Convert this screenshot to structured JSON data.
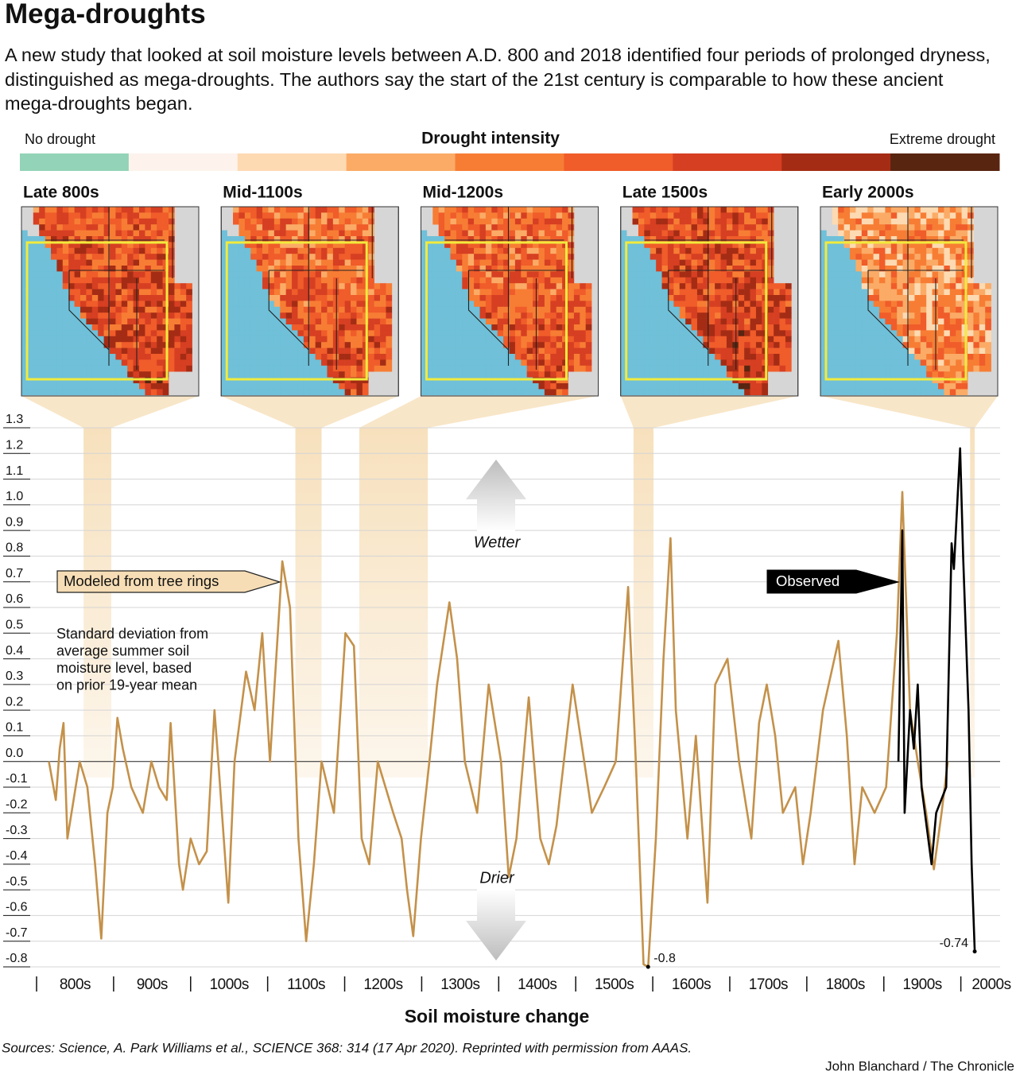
{
  "chart_data": {
    "type": "line",
    "title": "Mega-droughts",
    "subtitle": "A new study that looked at soil moisture levels between A.D. 800 and 2018 identified four periods of prolonged dryness, distinguished as mega-droughts. The authors say the start of the 21st century is comparable to how these ancient mega-droughts began.",
    "colorbar": {
      "title": "Drought intensity",
      "low_label": "No drought",
      "high_label": "Extreme drought",
      "colors": [
        "#93d3b7",
        "#fdf3ec",
        "#fddab2",
        "#fbab66",
        "#f77d34",
        "#f05c2a",
        "#d63f22",
        "#a52c14",
        "#582511"
      ]
    },
    "panels": [
      {
        "title": "Late 800s",
        "start": 861,
        "end": 897
      },
      {
        "title": "Mid-1100s",
        "start": 1136,
        "end": 1170
      },
      {
        "title": "Mid-1200s",
        "start": 1219,
        "end": 1308
      },
      {
        "title": "Late 1500s",
        "start": 1575,
        "end": 1601
      },
      {
        "title": "Early 2000s",
        "start": 2012,
        "end": 2018
      }
    ],
    "x_label": "Soil moisture change",
    "y_label": [
      "Standard deviation from",
      "average summer soil",
      "moisture level, based",
      "on prior 19-year mean"
    ],
    "wetter_label": "Wetter",
    "drier_label": "Drier",
    "xlim": [
      800,
      2020
    ],
    "xticks": [
      {
        "value": 800,
        "label": "800s"
      },
      {
        "value": 900,
        "label": "900s"
      },
      {
        "value": 1000,
        "label": "1000s"
      },
      {
        "value": 1100,
        "label": "1100s"
      },
      {
        "value": 1200,
        "label": "1200s"
      },
      {
        "value": 1300,
        "label": "1300s"
      },
      {
        "value": 1400,
        "label": "1400s"
      },
      {
        "value": 1500,
        "label": "1500s"
      },
      {
        "value": 1600,
        "label": "1600s"
      },
      {
        "value": 1700,
        "label": "1700s"
      },
      {
        "value": 1800,
        "label": "1800s"
      },
      {
        "value": 1900,
        "label": "1900s"
      },
      {
        "value": 2000,
        "label": "2000s"
      }
    ],
    "ylim": [
      -0.8,
      1.3
    ],
    "yticks": [
      1.3,
      1.2,
      1.1,
      {
        "value": 1,
        "label": "1.0"
      },
      0.9,
      0.8,
      0.7,
      0.6,
      0.5,
      0.4,
      0.3,
      0.2,
      0.1,
      {
        "value": 0,
        "label": "0.0"
      },
      -0.1,
      -0.2,
      -0.3,
      -0.4,
      -0.5,
      -0.6,
      -0.7,
      -0.8
    ],
    "series": [
      {
        "name": "Modeled from tree rings",
        "color": "#c4914a",
        "x": [
          816,
          825,
          830,
          835,
          840,
          856,
          866,
          876,
          884,
          892,
          899,
          905,
          912,
          923,
          938,
          949,
          959,
          969,
          974,
          985,
          990,
          1000,
          1011,
          1021,
          1031,
          1036,
          1049,
          1057,
          1072,
          1083,
          1093,
          1103,
          1109,
          1119,
          1129,
          1140,
          1150,
          1160,
          1170,
          1186,
          1201,
          1212,
          1222,
          1232,
          1243,
          1253,
          1263,
          1274,
          1281,
          1289,
          1299,
          1310,
          1320,
          1336,
          1346,
          1356,
          1372,
          1387,
          1403,
          1413,
          1423,
          1439,
          1454,
          1465,
          1475,
          1496,
          1511,
          1521,
          1537,
          1552,
          1568,
          1578,
          1588,
          1594,
          1604,
          1614,
          1623,
          1630,
          1645,
          1656,
          1671,
          1681,
          1697,
          1712,
          1728,
          1738,
          1748,
          1759,
          1769,
          1785,
          1795,
          1805,
          1821,
          1841,
          1852,
          1862,
          1872,
          1888,
          1903,
          1917,
          1924,
          1934,
          1944,
          1955,
          1965,
          1975,
          1983
        ],
        "values": [
          0.0,
          -0.15,
          0.05,
          0.15,
          -0.3,
          0.0,
          -0.1,
          -0.4,
          -0.69,
          -0.2,
          -0.1,
          0.17,
          0.05,
          -0.1,
          -0.2,
          0.0,
          -0.1,
          -0.15,
          0.15,
          -0.4,
          -0.5,
          -0.3,
          -0.4,
          -0.35,
          0.2,
          0.0,
          -0.55,
          0.0,
          0.35,
          0.2,
          0.5,
          0.0,
          0.3,
          0.78,
          0.6,
          -0.3,
          -0.7,
          -0.4,
          0.0,
          -0.2,
          0.5,
          0.45,
          -0.3,
          -0.4,
          0.0,
          -0.1,
          -0.2,
          -0.3,
          -0.5,
          -0.68,
          -0.3,
          0.0,
          0.3,
          0.62,
          0.4,
          0.0,
          -0.2,
          0.3,
          0.0,
          -0.45,
          -0.3,
          0.25,
          -0.3,
          -0.4,
          -0.25,
          0.3,
          0.0,
          -0.2,
          -0.1,
          0.0,
          0.68,
          0.0,
          -0.79,
          -0.8,
          -0.3,
          0.4,
          0.87,
          0.2,
          -0.3,
          0.1,
          -0.55,
          0.3,
          0.4,
          0.0,
          -0.3,
          0.15,
          0.3,
          0.1,
          -0.2,
          -0.1,
          -0.4,
          -0.2,
          0.2,
          0.47,
          0.1,
          -0.4,
          -0.1,
          -0.2,
          -0.1,
          0.5,
          1.05,
          0.2,
          0.0,
          -0.2,
          -0.42,
          -0.2,
          0.0
        ]
      },
      {
        "name": "Observed",
        "color": "#000000",
        "x": [
          1919,
          1924,
          1927,
          1934,
          1939,
          1944,
          1949,
          1962,
          1968,
          1981,
          1988,
          1991,
          1999,
          2003,
          2010,
          2014,
          2018
        ],
        "values": [
          0.0,
          0.9,
          -0.2,
          0.2,
          0.05,
          0.3,
          -0.1,
          -0.4,
          -0.2,
          -0.1,
          0.85,
          0.75,
          1.22,
          0.8,
          0.2,
          -0.4,
          -0.74
        ]
      }
    ],
    "annotations": [
      {
        "label": "-0.8",
        "x": 1594,
        "y": -0.8
      },
      {
        "label": "-0.74",
        "x": 2018,
        "y": -0.74
      }
    ],
    "source": "Sources: Science, A. Park Williams et al., SCIENCE 368: 314 (17 Apr 2020). Reprinted with permission from AAAS.",
    "credit": "John Blanchard / The Chronicle"
  }
}
